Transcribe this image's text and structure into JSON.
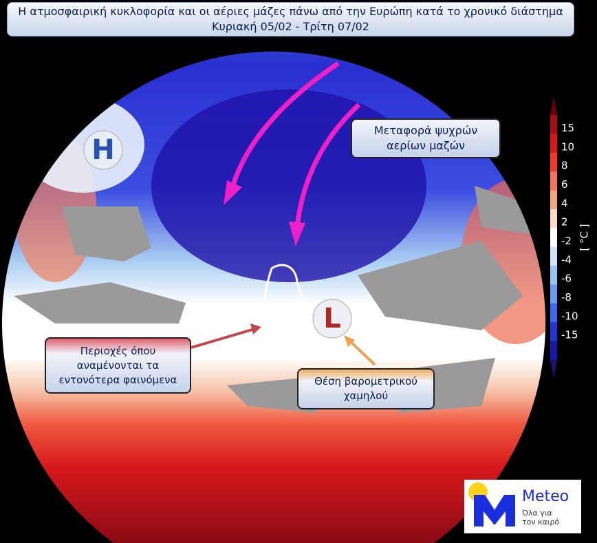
{
  "header": {
    "title": "Η ατμοσφαιρική κυκλοφορία και οι αέριες μάζες πάνω από την Ευρώπη κατά το χρονικό διάστημα Κυριακή 05/02 - Τρίτη 07/02"
  },
  "map": {
    "high_label": "H",
    "low_label": "L"
  },
  "annotations": [
    {
      "text": "Μεταφορά ψυχρών αερίων μαζών"
    },
    {
      "text": "Περιοχές όπου αναμένονται τα εντονότερα φαινόμενα"
    },
    {
      "text": "Θέση βαρομετρικού χαμηλού"
    }
  ],
  "colorbar": {
    "unit": "[ °C ]",
    "ticks": [
      15,
      10,
      8,
      6,
      4,
      2,
      -2,
      -4,
      -6,
      -8,
      -10,
      -15
    ],
    "colors": [
      "#6b0010",
      "#a50f15",
      "#d7191c",
      "#ef3b2c",
      "#f4735a",
      "#f6a582",
      "#fbd9c6",
      "#ffffff",
      "#cfe3f7",
      "#9ac4f0",
      "#6a9df0",
      "#3c6ae8",
      "#2536d4",
      "#1a18a8",
      "#22106e"
    ]
  },
  "logo": {
    "name": "Meteo",
    "tagline": "Όλα για τον καιρό"
  }
}
